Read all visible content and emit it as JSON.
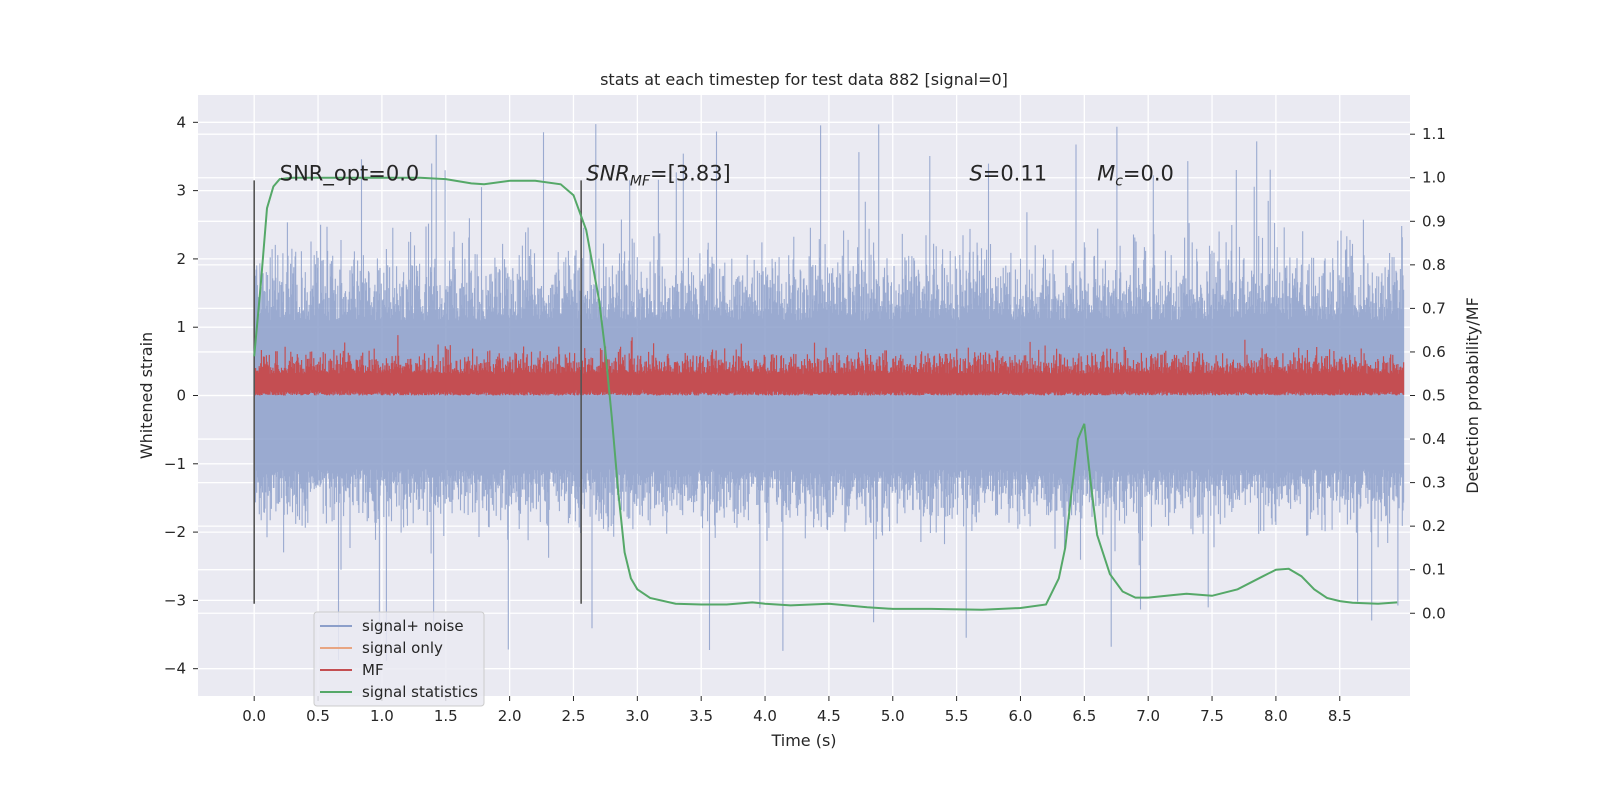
{
  "chart_data": {
    "type": "line",
    "title": "stats at each timestep for test data 882 [signal=0]",
    "xlabel": "Time (s)",
    "ylabel": "Whitened strain",
    "y2label": "Detection probability/MF",
    "xlim": [
      -0.44,
      9.05
    ],
    "ylim": [
      -4.4,
      4.4
    ],
    "y2lim": [
      -0.19,
      1.19
    ],
    "x_ticks": [
      "0.0",
      "0.5",
      "1.0",
      "1.5",
      "2.0",
      "2.5",
      "3.0",
      "3.5",
      "4.0",
      "4.5",
      "5.0",
      "5.5",
      "6.0",
      "6.5",
      "7.0",
      "7.5",
      "8.0",
      "8.5"
    ],
    "y_ticks": [
      "4",
      "3",
      "2",
      "1",
      "0",
      "−1",
      "−2",
      "−3",
      "−4"
    ],
    "y2_ticks": [
      "1.1",
      "1.0",
      "0.9",
      "0.8",
      "0.7",
      "0.6",
      "0.5",
      "0.4",
      "0.3",
      "0.2",
      "0.1",
      "0.0"
    ],
    "grid": true,
    "legend_position": "lower-left",
    "annotations": {
      "snr_opt": "SNR_opt=0.0",
      "snr_mf_sym": "SNR",
      "snr_mf_sub": "MF",
      "snr_mf_val": "=[3.83]",
      "s_sym": "S",
      "s_val": "=0.11",
      "mc_sym": "M",
      "mc_sub": "c",
      "mc_val": "=0.0"
    },
    "window_markers": {
      "x": [
        0.0,
        2.56
      ],
      "y_range": [
        -3.05,
        3.15
      ]
    },
    "series": [
      {
        "name": "signal+ noise",
        "color": "#8c9fca",
        "x_range": [
          0.0,
          9.0
        ],
        "envelope_typical": [
          -1.8,
          2.0
        ],
        "extreme_max": 4.0,
        "extreme_min": -3.9
      },
      {
        "name": "signal only",
        "color": "#e8a582",
        "values": []
      },
      {
        "name": "MF",
        "color": "#c44e52",
        "axis": "right",
        "x_range": [
          0.0,
          9.0
        ],
        "band": [
          0.5,
          0.65
        ],
        "extreme_max": 0.66
      },
      {
        "name": "signal statistics",
        "color": "#55a868",
        "axis": "right",
        "x": [
          0.0,
          0.05,
          0.1,
          0.15,
          0.2,
          0.3,
          0.5,
          0.8,
          1.0,
          1.3,
          1.5,
          1.7,
          1.8,
          2.0,
          2.2,
          2.4,
          2.5,
          2.6,
          2.7,
          2.75,
          2.8,
          2.85,
          2.9,
          2.95,
          3.0,
          3.1,
          3.3,
          3.5,
          3.7,
          3.9,
          4.0,
          4.2,
          4.5,
          4.8,
          5.0,
          5.3,
          5.7,
          6.0,
          6.2,
          6.3,
          6.35,
          6.4,
          6.45,
          6.5,
          6.55,
          6.6,
          6.7,
          6.8,
          6.9,
          7.0,
          7.2,
          7.3,
          7.5,
          7.7,
          7.9,
          8.0,
          8.1,
          8.2,
          8.3,
          8.4,
          8.5,
          8.6,
          8.8,
          8.95
        ],
        "values": [
          0.59,
          0.75,
          0.93,
          0.98,
          0.997,
          1.0,
          1.0,
          1.0,
          1.0,
          1.0,
          0.997,
          0.987,
          0.985,
          0.993,
          0.993,
          0.985,
          0.96,
          0.88,
          0.72,
          0.6,
          0.45,
          0.28,
          0.14,
          0.08,
          0.055,
          0.035,
          0.022,
          0.02,
          0.02,
          0.025,
          0.022,
          0.018,
          0.022,
          0.014,
          0.01,
          0.01,
          0.008,
          0.012,
          0.02,
          0.08,
          0.15,
          0.28,
          0.4,
          0.435,
          0.3,
          0.18,
          0.09,
          0.05,
          0.036,
          0.036,
          0.042,
          0.045,
          0.04,
          0.055,
          0.085,
          0.1,
          0.102,
          0.085,
          0.055,
          0.035,
          0.028,
          0.024,
          0.022,
          0.025
        ]
      }
    ]
  }
}
